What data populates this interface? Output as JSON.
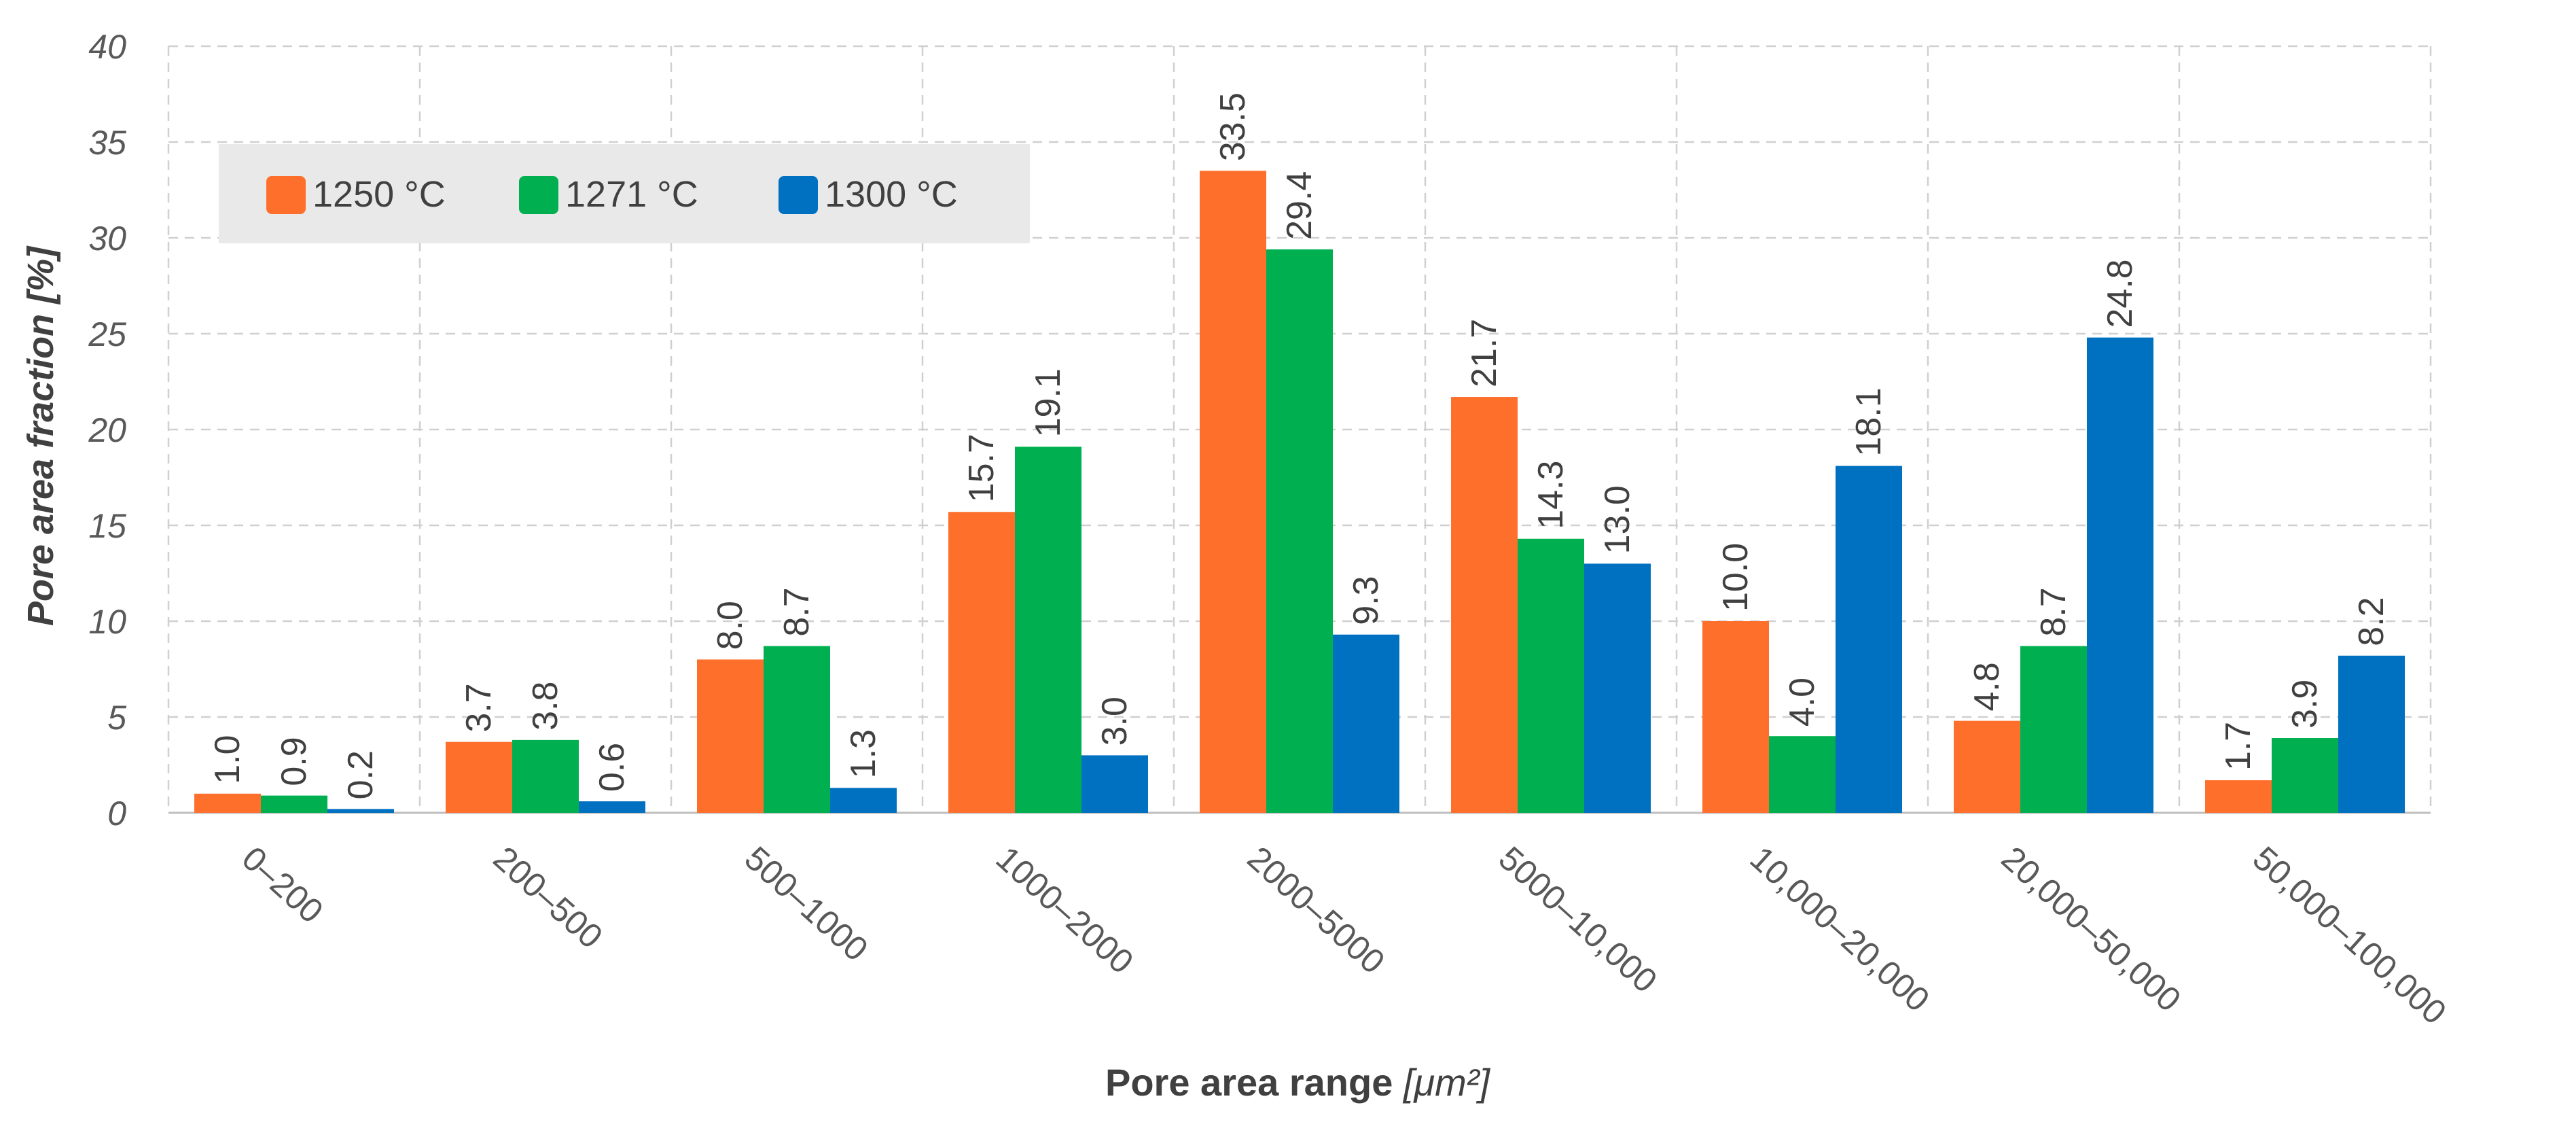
{
  "chart_data": {
    "type": "bar",
    "title": "",
    "xlabel": "Pore area range",
    "xlabel_unit": "[μm²]",
    "ylabel": "Pore area fraction [%]",
    "ylim": [
      0,
      40
    ],
    "yticks": [
      0,
      5,
      10,
      15,
      20,
      25,
      30,
      35,
      40
    ],
    "grid": true,
    "legend_position": "top-left",
    "categories": [
      "0–200",
      "200–500",
      "500–1000",
      "1000–2000",
      "2000–5000",
      "5000–10,000",
      "10,000–20,000",
      "20,000–50,000",
      "50,000–100,000"
    ],
    "series": [
      {
        "name": "1250 °C",
        "color": "#ff6f2c",
        "values": [
          1.0,
          3.7,
          8.0,
          15.7,
          33.5,
          21.7,
          10.0,
          4.8,
          1.7
        ],
        "labels": [
          "1.0",
          "3.7",
          "8.0",
          "15.7",
          "33.5",
          "21.7",
          "10.0",
          "4.8",
          "1.7"
        ]
      },
      {
        "name": "1271 °C",
        "color": "#00b050",
        "values": [
          0.9,
          3.8,
          8.7,
          19.1,
          29.4,
          14.3,
          4.0,
          8.7,
          3.9
        ],
        "labels": [
          "0.9",
          "3.8",
          "8.7",
          "19.1",
          "29.4",
          "14.3",
          "4.0",
          "8.7",
          "3.9"
        ]
      },
      {
        "name": "1300 °C",
        "color": "#0070c0",
        "values": [
          0.2,
          0.6,
          1.3,
          3.0,
          9.3,
          13.0,
          18.1,
          24.8,
          8.2
        ],
        "labels": [
          "0.2",
          "0.6",
          "1.3",
          "3.0",
          "9.3",
          "13.0",
          "18.1",
          "24.8",
          "8.2"
        ]
      }
    ]
  }
}
